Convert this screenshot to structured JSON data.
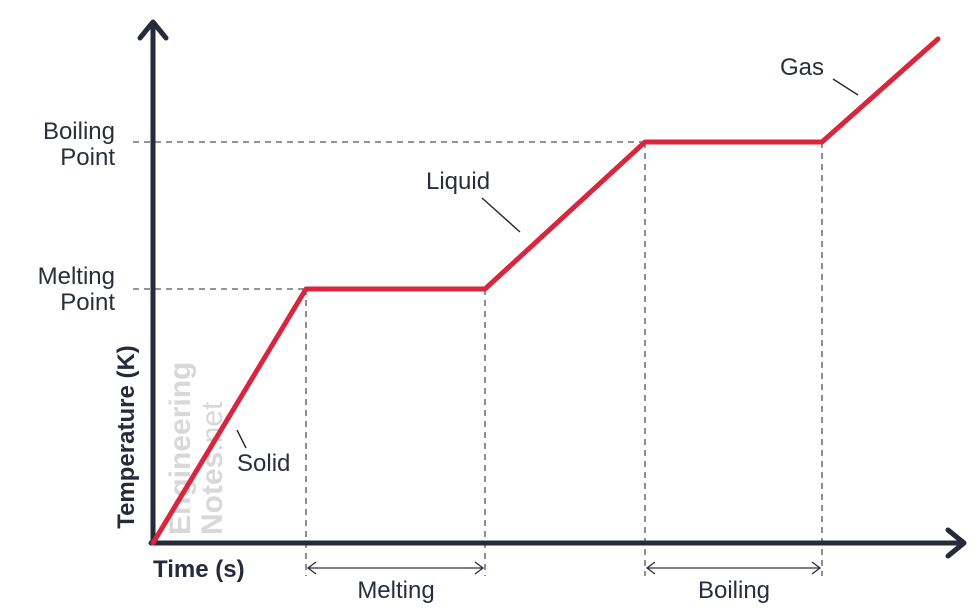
{
  "axes": {
    "x_title": "Time (s)",
    "y_title": "Temperature (K)"
  },
  "levels": {
    "boiling_line1": "Boiling",
    "boiling_line2": "Point",
    "melting_line1": "Melting",
    "melting_line2": "Point"
  },
  "phases": {
    "solid": "Solid",
    "liquid": "Liquid",
    "gas": "Gas"
  },
  "intervals": {
    "melting": "Melting",
    "boiling": "Boiling"
  },
  "watermark": {
    "line1": "Engineering",
    "line2_bold": "Notes",
    "line2_light": ".net"
  },
  "colors": {
    "curve": "#d7263d",
    "axis": "#262a3b",
    "guide": "#555555"
  }
}
